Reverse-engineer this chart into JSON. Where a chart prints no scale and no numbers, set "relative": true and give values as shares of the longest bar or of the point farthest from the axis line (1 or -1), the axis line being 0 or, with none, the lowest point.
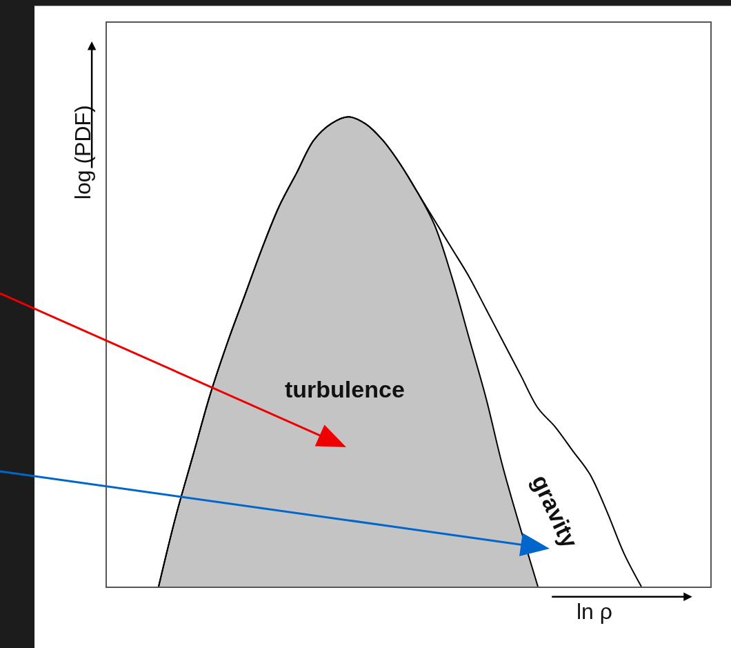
{
  "chart_data": {
    "type": "area",
    "relative": true,
    "xlabel": "ln ρ",
    "ylabel": "log (PDF)",
    "legend": false,
    "categories": [
      null,
      null,
      null,
      null,
      null,
      null,
      null,
      null,
      null,
      null,
      null,
      null,
      null,
      null,
      null,
      null,
      null,
      null,
      null,
      null,
      null,
      null,
      null,
      null,
      null,
      null,
      null,
      null,
      null,
      null,
      null,
      null,
      null,
      null,
      null,
      null
    ],
    "series": [
      {
        "name": "turbulence",
        "color": "#c4c4c4",
        "values": [
          null,
          null,
          null,
          0,
          0.15,
          0.28,
          0.41,
          0.52,
          0.62,
          0.72,
          0.81,
          0.88,
          0.95,
          0.985,
          1.0,
          0.985,
          0.95,
          0.9,
          0.84,
          0.77,
          0.66,
          0.53,
          0.4,
          0.25,
          null,
          0,
          null,
          null,
          null,
          null,
          null,
          null,
          null,
          null,
          null,
          null
        ]
      },
      {
        "name": "gravity",
        "type": "line",
        "color": "#000000",
        "values": [
          null,
          null,
          null,
          0,
          0.15,
          0.28,
          0.41,
          0.52,
          0.62,
          0.72,
          0.81,
          0.88,
          0.95,
          0.985,
          1.0,
          0.985,
          0.95,
          0.9,
          0.84,
          0.78,
          0.72,
          0.66,
          0.59,
          0.52,
          0.45,
          0.38,
          0.34,
          0.29,
          0.24,
          0.16,
          0.07,
          0,
          null,
          null,
          null,
          null
        ]
      }
    ]
  }
}
